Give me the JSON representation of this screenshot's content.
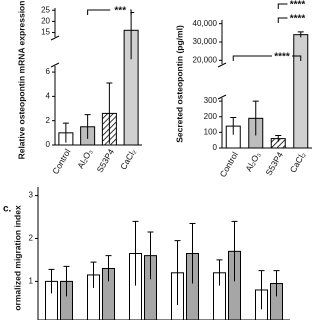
{
  "chart_data": [
    {
      "type": "bar",
      "ylabel": "Relative osteopontin mRNA expression",
      "categories": [
        "Control",
        "Al₂O₃",
        "S53P4",
        "CaCl₂"
      ],
      "values": [
        1.0,
        1.5,
        2.6,
        16
      ],
      "errors": [
        0.8,
        1.0,
        2.5,
        8
      ],
      "colors": [
        "#ffffff",
        "#bdbdbd",
        "hatch",
        "#d0d0d0"
      ],
      "segments": [
        {
          "ylim": [
            0,
            6.5
          ],
          "yticks": [
            0,
            2,
            4,
            6
          ]
        },
        {
          "ylim": [
            13,
            26
          ],
          "yticks": [
            15,
            20,
            25
          ]
        }
      ],
      "annotations": [
        "***"
      ]
    },
    {
      "type": "bar",
      "ylabel": "Secreted osteopontin (pg/ml)",
      "categories": [
        "Control",
        "Al₂O₃",
        "S53P4",
        "CaCl₂"
      ],
      "values": [
        140,
        190,
        60,
        34000
      ],
      "errors": [
        55,
        110,
        20,
        1500
      ],
      "colors": [
        "#ffffff",
        "#bdbdbd",
        "hatch",
        "#d0d0d0"
      ],
      "segments": [
        {
          "ylim": [
            0,
            320
          ],
          "yticks": [
            0,
            100,
            200,
            300
          ]
        },
        {
          "ylim": [
            18000,
            42000
          ],
          "yticks": [
            {
              "value": 20000,
              "label": "20,000"
            },
            {
              "value": 30000,
              "label": "30,000"
            },
            {
              "value": 40000,
              "label": "40,000"
            }
          ]
        }
      ],
      "annotations": [
        "****",
        "****",
        "****"
      ]
    },
    {
      "type": "bar",
      "panel_label": "c.",
      "ylabel": "ormalized migration index",
      "categories": [
        null,
        null,
        null,
        null,
        null,
        null
      ],
      "series": [
        {
          "color": "#ffffff",
          "values": [
            1.0,
            1.15,
            1.65,
            1.2,
            1.2,
            0.8
          ],
          "errors": [
            0.28,
            0.3,
            0.75,
            0.75,
            0.3,
            0.45
          ]
        },
        {
          "color": "#a6a6a6",
          "values": [
            1.0,
            1.3,
            1.6,
            1.65,
            1.7,
            0.95
          ],
          "errors": [
            0.35,
            0.3,
            0.55,
            0.7,
            0.7,
            0.3
          ]
        }
      ],
      "segments": [
        {
          "ylim": [
            0.1,
            3.2
          ],
          "yticks": [
            1,
            2,
            3
          ]
        }
      ]
    }
  ]
}
